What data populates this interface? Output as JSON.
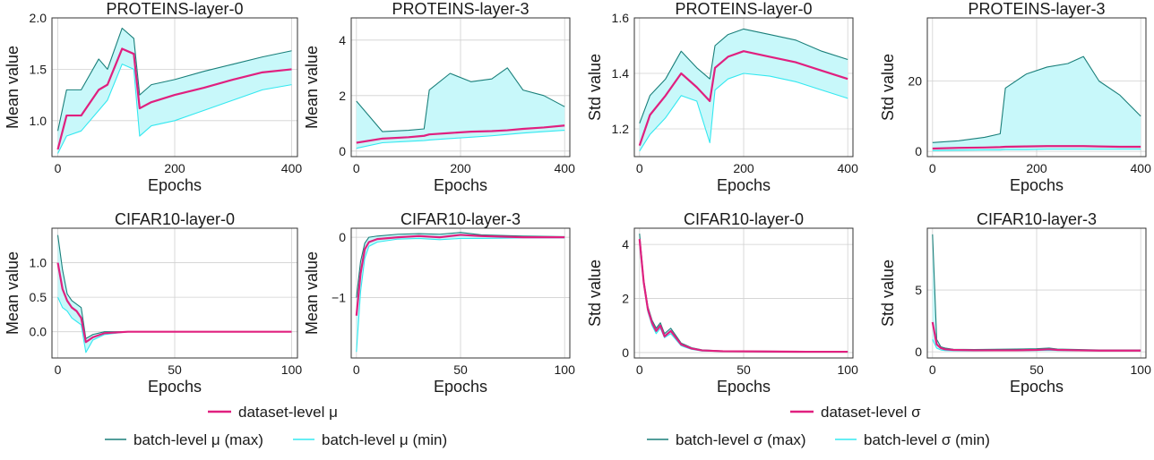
{
  "legend_groups": [
    {
      "id": "mu",
      "dataset_label": "dataset-level μ",
      "max_label": "batch-level μ (max)",
      "min_label": "batch-level μ (min)"
    },
    {
      "id": "sigma",
      "dataset_label": "dataset-level σ",
      "max_label": "batch-level σ (max)",
      "min_label": "batch-level σ (min)"
    }
  ],
  "colors": {
    "dataset": "#e0207f",
    "batch_max": "#1a7f7a",
    "batch_min": "#33e8f0",
    "fill": "#c8f8fa",
    "grid": "#d0d0d0",
    "axes": "#333333"
  },
  "chart_data": [
    {
      "type": "line",
      "title": "PROTEINS-layer-0",
      "xlabel": "Epochs",
      "ylabel": "Mean value",
      "xlim": [
        -10,
        410
      ],
      "ylim": [
        0.65,
        2.0
      ],
      "xticks": [
        0,
        200,
        400
      ],
      "xtick_labels": [
        "0",
        "200",
        "400"
      ],
      "yticks": [
        1.0,
        1.5,
        2.0
      ],
      "ytick_labels": [
        "1.0",
        "1.5",
        "2.0"
      ],
      "x": [
        0,
        15,
        40,
        70,
        85,
        110,
        130,
        140,
        160,
        200,
        250,
        300,
        350,
        400
      ],
      "series": [
        {
          "name": "dataset-level μ",
          "role": "dataset",
          "values": [
            0.72,
            1.05,
            1.05,
            1.3,
            1.35,
            1.7,
            1.65,
            1.12,
            1.18,
            1.25,
            1.32,
            1.4,
            1.47,
            1.5
          ]
        },
        {
          "name": "batch-level μ (max)",
          "role": "max",
          "values": [
            0.9,
            1.3,
            1.3,
            1.6,
            1.5,
            1.9,
            1.8,
            1.25,
            1.35,
            1.4,
            1.48,
            1.55,
            1.62,
            1.68
          ]
        },
        {
          "name": "batch-level μ (min)",
          "role": "min",
          "values": [
            0.68,
            0.85,
            0.9,
            1.1,
            1.2,
            1.55,
            1.5,
            0.85,
            0.95,
            1.0,
            1.1,
            1.2,
            1.3,
            1.35
          ]
        }
      ]
    },
    {
      "type": "line",
      "title": "PROTEINS-layer-3",
      "xlabel": "Epochs",
      "ylabel": "Mean value",
      "xlim": [
        -10,
        410
      ],
      "ylim": [
        -0.2,
        4.8
      ],
      "xticks": [
        0,
        200,
        400
      ],
      "xtick_labels": [
        "0",
        "200",
        "400"
      ],
      "yticks": [
        0,
        2,
        4
      ],
      "ytick_labels": [
        "0",
        "2",
        "4"
      ],
      "x": [
        0,
        50,
        100,
        130,
        140,
        180,
        220,
        260,
        290,
        320,
        360,
        400
      ],
      "series": [
        {
          "name": "dataset-level μ",
          "role": "dataset",
          "values": [
            0.3,
            0.45,
            0.5,
            0.55,
            0.6,
            0.65,
            0.7,
            0.72,
            0.75,
            0.8,
            0.85,
            0.92
          ]
        },
        {
          "name": "batch-level μ (max)",
          "role": "max",
          "values": [
            1.8,
            0.7,
            0.75,
            0.8,
            2.2,
            2.8,
            2.5,
            2.6,
            3.0,
            2.2,
            2.0,
            1.6
          ]
        },
        {
          "name": "batch-level μ (min)",
          "role": "min",
          "values": [
            0.1,
            0.3,
            0.35,
            0.38,
            0.4,
            0.45,
            0.5,
            0.55,
            0.6,
            0.65,
            0.7,
            0.75
          ]
        }
      ]
    },
    {
      "type": "line",
      "title": "PROTEINS-layer-0",
      "xlabel": "Epochs",
      "ylabel": "Std value",
      "xlim": [
        -10,
        410
      ],
      "ylim": [
        1.1,
        1.6
      ],
      "xticks": [
        0,
        200,
        400
      ],
      "xtick_labels": [
        "0",
        "200",
        "400"
      ],
      "yticks": [
        1.2,
        1.4,
        1.6
      ],
      "ytick_labels": [
        "1.2",
        "1.4",
        "1.6"
      ],
      "x": [
        0,
        20,
        50,
        80,
        110,
        135,
        145,
        170,
        200,
        250,
        300,
        350,
        400
      ],
      "series": [
        {
          "name": "dataset-level σ",
          "role": "dataset",
          "values": [
            1.14,
            1.25,
            1.32,
            1.4,
            1.35,
            1.3,
            1.42,
            1.46,
            1.48,
            1.46,
            1.44,
            1.41,
            1.38
          ]
        },
        {
          "name": "batch-level σ (max)",
          "role": "max",
          "values": [
            1.22,
            1.32,
            1.38,
            1.48,
            1.42,
            1.38,
            1.5,
            1.54,
            1.56,
            1.54,
            1.52,
            1.48,
            1.45
          ]
        },
        {
          "name": "batch-level σ (min)",
          "role": "min",
          "values": [
            1.12,
            1.18,
            1.24,
            1.32,
            1.3,
            1.15,
            1.34,
            1.38,
            1.4,
            1.39,
            1.37,
            1.34,
            1.31
          ]
        }
      ]
    },
    {
      "type": "line",
      "title": "PROTEINS-layer-3",
      "xlabel": "Epochs",
      "ylabel": "Std value",
      "xlim": [
        -10,
        410
      ],
      "ylim": [
        -1.5,
        38
      ],
      "xticks": [
        0,
        200,
        400
      ],
      "xtick_labels": [
        "0",
        "200",
        "400"
      ],
      "yticks": [
        0,
        20
      ],
      "ytick_labels": [
        "0",
        "20"
      ],
      "x": [
        0,
        50,
        100,
        130,
        140,
        180,
        220,
        260,
        290,
        320,
        360,
        400
      ],
      "series": [
        {
          "name": "dataset-level σ",
          "role": "dataset",
          "values": [
            0.8,
            1.0,
            1.1,
            1.2,
            1.3,
            1.4,
            1.5,
            1.5,
            1.5,
            1.4,
            1.3,
            1.3
          ]
        },
        {
          "name": "batch-level σ (max)",
          "role": "max",
          "values": [
            2.5,
            3.0,
            4.0,
            5.0,
            18.0,
            22.0,
            24.0,
            25.0,
            27.0,
            20.0,
            16.0,
            10.0
          ]
        },
        {
          "name": "batch-level σ (min)",
          "role": "min",
          "values": [
            0.2,
            0.3,
            0.4,
            0.4,
            0.5,
            0.5,
            0.6,
            0.6,
            0.6,
            0.6,
            0.6,
            0.6
          ]
        }
      ]
    },
    {
      "type": "line",
      "title": "CIFAR10-layer-0",
      "xlabel": "Epochs",
      "ylabel": "Mean value",
      "xlim": [
        -2.5,
        102.5
      ],
      "ylim": [
        -0.38,
        1.5
      ],
      "xticks": [
        0,
        50,
        100
      ],
      "xtick_labels": [
        "0",
        "50",
        "100"
      ],
      "yticks": [
        0.0,
        0.5,
        1.0
      ],
      "ytick_labels": [
        "0.0",
        "0.5",
        "1.0"
      ],
      "x": [
        0,
        2,
        4,
        6,
        8,
        10,
        12,
        15,
        20,
        30,
        40,
        60,
        80,
        100
      ],
      "series": [
        {
          "name": "dataset-level μ",
          "role": "dataset",
          "values": [
            1.0,
            0.62,
            0.45,
            0.35,
            0.3,
            0.2,
            -0.15,
            -0.08,
            -0.02,
            0.0,
            0.0,
            0.0,
            0.0,
            0.0
          ]
        },
        {
          "name": "batch-level μ (max)",
          "role": "max",
          "values": [
            1.4,
            0.9,
            0.55,
            0.45,
            0.4,
            0.35,
            -0.1,
            -0.04,
            0.0,
            0.0,
            0.0,
            0.0,
            0.0,
            0.0
          ]
        },
        {
          "name": "batch-level μ (min)",
          "role": "min",
          "values": [
            0.5,
            0.35,
            0.3,
            0.2,
            0.15,
            0.1,
            -0.3,
            -0.12,
            -0.04,
            0.0,
            0.0,
            0.0,
            0.0,
            0.0
          ]
        }
      ]
    },
    {
      "type": "line",
      "title": "CIFAR10-layer-3",
      "xlabel": "Epochs",
      "ylabel": "Mean value",
      "xlim": [
        -2.5,
        102.5
      ],
      "ylim": [
        -2.0,
        0.15
      ],
      "xticks": [
        0,
        50,
        100
      ],
      "xtick_labels": [
        "0",
        "50",
        "100"
      ],
      "yticks": [
        -1,
        0
      ],
      "ytick_labels": [
        "−1",
        "0"
      ],
      "x": [
        0,
        2,
        4,
        6,
        10,
        20,
        30,
        40,
        50,
        60,
        80,
        100
      ],
      "series": [
        {
          "name": "dataset-level μ",
          "role": "dataset",
          "values": [
            -1.3,
            -0.6,
            -0.2,
            -0.08,
            -0.03,
            0.0,
            0.02,
            0.0,
            0.04,
            0.02,
            0.0,
            0.0
          ]
        },
        {
          "name": "batch-level μ (max)",
          "role": "max",
          "values": [
            -1.0,
            -0.4,
            -0.1,
            0.0,
            0.02,
            0.05,
            0.06,
            0.05,
            0.08,
            0.04,
            0.02,
            0.01
          ]
        },
        {
          "name": "batch-level μ (min)",
          "role": "min",
          "values": [
            -1.9,
            -0.9,
            -0.35,
            -0.15,
            -0.08,
            -0.03,
            -0.02,
            -0.04,
            -0.02,
            -0.02,
            -0.01,
            -0.01
          ]
        }
      ]
    },
    {
      "type": "line",
      "title": "CIFAR10-layer-0",
      "xlabel": "Epochs",
      "ylabel": "Std value",
      "xlim": [
        -2.5,
        102.5
      ],
      "ylim": [
        -0.2,
        4.6
      ],
      "xticks": [
        0,
        50,
        100
      ],
      "xtick_labels": [
        "0",
        "50",
        "100"
      ],
      "yticks": [
        0,
        2,
        4
      ],
      "ytick_labels": [
        "0",
        "2",
        "4"
      ],
      "x": [
        0,
        2,
        4,
        6,
        8,
        10,
        12,
        15,
        20,
        25,
        30,
        40,
        60,
        80,
        100
      ],
      "series": [
        {
          "name": "dataset-level σ",
          "role": "dataset",
          "values": [
            4.2,
            2.6,
            1.6,
            1.1,
            0.8,
            1.0,
            0.6,
            0.8,
            0.3,
            0.15,
            0.08,
            0.05,
            0.04,
            0.03,
            0.03
          ]
        },
        {
          "name": "batch-level σ (max)",
          "role": "max",
          "values": [
            4.4,
            2.7,
            1.7,
            1.2,
            0.9,
            1.1,
            0.7,
            0.9,
            0.35,
            0.18,
            0.1,
            0.06,
            0.05,
            0.04,
            0.04
          ]
        },
        {
          "name": "batch-level σ (min)",
          "role": "min",
          "values": [
            4.0,
            2.5,
            1.5,
            1.0,
            0.7,
            0.9,
            0.55,
            0.7,
            0.25,
            0.12,
            0.06,
            0.04,
            0.03,
            0.02,
            0.02
          ]
        }
      ]
    },
    {
      "type": "line",
      "title": "CIFAR10-layer-3",
      "xlabel": "Epochs",
      "ylabel": "Std value",
      "xlim": [
        -2.5,
        102.5
      ],
      "ylim": [
        -0.5,
        10.0
      ],
      "xticks": [
        0,
        50,
        100
      ],
      "xtick_labels": [
        "0",
        "50",
        "100"
      ],
      "yticks": [
        0,
        5
      ],
      "ytick_labels": [
        "0",
        "5"
      ],
      "x": [
        0,
        2,
        4,
        6,
        10,
        20,
        30,
        40,
        50,
        56,
        60,
        70,
        80,
        90,
        100
      ],
      "series": [
        {
          "name": "dataset-level σ",
          "role": "dataset",
          "values": [
            2.4,
            0.6,
            0.3,
            0.2,
            0.15,
            0.12,
            0.12,
            0.12,
            0.15,
            0.2,
            0.15,
            0.12,
            0.1,
            0.1,
            0.1
          ]
        },
        {
          "name": "batch-level σ (max)",
          "role": "max",
          "values": [
            9.5,
            1.0,
            0.4,
            0.3,
            0.2,
            0.18,
            0.2,
            0.22,
            0.25,
            0.3,
            0.22,
            0.18,
            0.15,
            0.15,
            0.15
          ]
        },
        {
          "name": "batch-level σ (min)",
          "role": "min",
          "values": [
            1.0,
            0.3,
            0.15,
            0.1,
            0.08,
            0.07,
            0.08,
            0.08,
            0.1,
            0.12,
            0.1,
            0.08,
            0.07,
            0.07,
            0.07
          ]
        }
      ]
    }
  ]
}
